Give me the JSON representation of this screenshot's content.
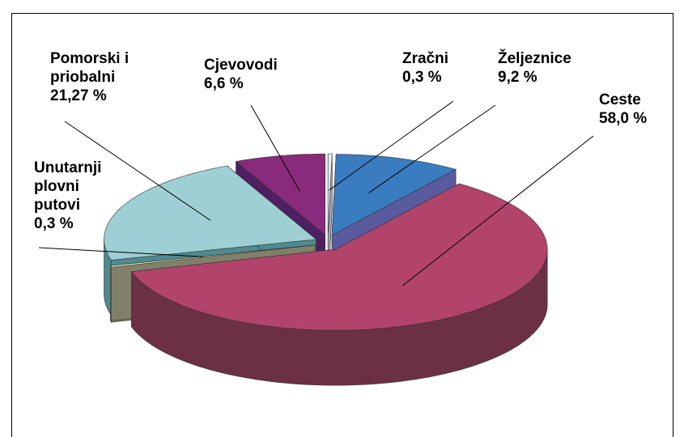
{
  "chart_data": {
    "type": "pie3d",
    "categories": [
      "Zračni",
      "Željeznice",
      "Ceste",
      "Unutarnji plovni putovi",
      "Pomorski i priobalni",
      "Cjevovodi"
    ],
    "values": [
      0.3,
      9.2,
      58.0,
      0.3,
      21.27,
      6.6
    ],
    "value_labels": [
      "0,3 %",
      "9,2 %",
      "58,0 %",
      "0,3 %",
      "21,27 %",
      "6,6 %"
    ],
    "colors": [
      "#e8e8f4",
      "#3a7cc0",
      "#b2446c",
      "#f2f2b8",
      "#9ecfd4",
      "#8a2a7c"
    ],
    "side_colors": [
      "#a0a0b8",
      "#5a5a9e",
      "#6c3045",
      "#80806a",
      "#4f8a90",
      "#4e2062"
    ]
  }
}
